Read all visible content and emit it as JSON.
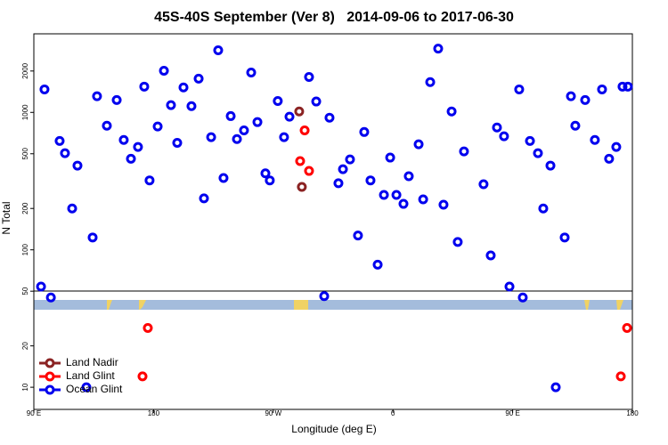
{
  "chart_data": {
    "type": "scatter",
    "title": "45S-40S September (Ver 8)   2014-09-06 to 2017-06-30",
    "x_label": "Longitude (deg E)",
    "y_label": "N Total",
    "xlim": [
      90,
      540
    ],
    "xticks": [
      {
        "value": 90,
        "label": "90 E"
      },
      {
        "value": 180,
        "label": "180"
      },
      {
        "value": 270,
        "label": "90 W"
      },
      {
        "value": 360,
        "label": "0"
      },
      {
        "value": 450,
        "label": "90 E"
      },
      {
        "value": 540,
        "label": "180"
      }
    ],
    "ylim": [
      6.9,
      3730
    ],
    "y_scale": "log",
    "yticks": [
      10,
      20,
      50,
      100,
      200,
      500,
      1000,
      2000
    ],
    "legend": "bottom-left",
    "series": [
      {
        "name": "Ocean Glint",
        "color": "#0000ee",
        "x": [
          95.4,
          98,
          102.8,
          109.4,
          113.4,
          118.8,
          122.8,
          129.5,
          134.2,
          137.5,
          144.9,
          152.3,
          157.6,
          163,
          168.3,
          173,
          177,
          183.1,
          187.8,
          193.1,
          197.8,
          202.5,
          208.5,
          213.9,
          217.9,
          223.3,
          228.6,
          232.6,
          238,
          242.7,
          248,
          253.4,
          258.1,
          264.1,
          267.4,
          273.4,
          278.1,
          282.2,
          296.9,
          302.3,
          308.3,
          312.3,
          319,
          322.4,
          327.7,
          333.7,
          338.4,
          343.1,
          348.5,
          353.2,
          357.9,
          362.6,
          367.9,
          371.9,
          379.3,
          382.7,
          388,
          394,
          398,
          404.1,
          408.7,
          413.4,
          428.1,
          433.5,
          438.2,
          443.5,
          447.6,
          454.9,
          457.6,
          463,
          469,
          473,
          478.4,
          482.4,
          489.1,
          493.8,
          497.1,
          504.5,
          511.8,
          517.2,
          522.5,
          527.9,
          532.6,
          536.6
        ],
        "values": [
          54,
          1470,
          45,
          620,
          505,
          200,
          410,
          10,
          123,
          1310,
          800,
          1230,
          630,
          460,
          560,
          1540,
          320,
          790,
          2010,
          1130,
          600,
          1520,
          1110,
          1760,
          237,
          660,
          2830,
          333,
          940,
          640,
          740,
          1950,
          850,
          360,
          320,
          1210,
          660,
          930,
          1810,
          1200,
          46,
          915,
          305,
          386,
          455,
          127,
          720,
          320,
          78,
          251,
          469,
          251,
          216,
          343,
          586,
          233,
          1660,
          2910,
          213,
          1015,
          114,
          520,
          300,
          91,
          777,
          670,
          54,
          1470,
          45,
          620,
          505,
          200,
          410,
          10,
          123,
          1310,
          800,
          1230,
          630,
          1470,
          460,
          560,
          1540,
          1540
        ]
      },
      {
        "name": "Land Nadir",
        "color": "#8b2323",
        "x": [
          289.5,
          291.5
        ],
        "values": [
          1015,
          287
        ]
      },
      {
        "name": "Land Glint",
        "color": "#ff0000",
        "x": [
          293.6,
          290.2,
          296.9,
          175.7,
          171.7,
          536,
          531.3
        ],
        "values": [
          740,
          442,
          375,
          27,
          12,
          27,
          12
        ]
      }
    ]
  }
}
